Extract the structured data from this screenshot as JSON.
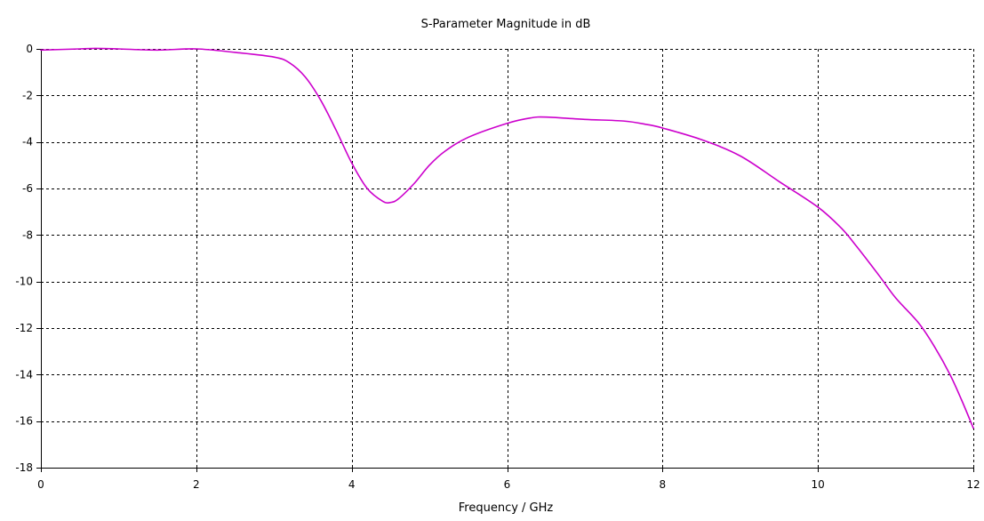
{
  "chart_data": {
    "type": "line",
    "title": "S-Parameter Magnitude in dB",
    "xlabel": "Frequency / GHz",
    "ylabel": "",
    "xlim": [
      0,
      12
    ],
    "ylim": [
      -18,
      0
    ],
    "xticks": [
      0,
      2,
      4,
      6,
      8,
      10,
      12
    ],
    "yticks": [
      0,
      -2,
      -4,
      -6,
      -8,
      -10,
      -12,
      -14,
      -16,
      -18
    ],
    "grid": true,
    "grid_style": "dashed",
    "legend": "none",
    "series": [
      {
        "color": "#cc00cc",
        "x": [
          0,
          0.5,
          0.7,
          1.0,
          1.5,
          2.0,
          2.5,
          3.0,
          3.2,
          3.4,
          3.6,
          3.8,
          4.0,
          4.2,
          4.4,
          4.5,
          4.6,
          4.8,
          5.0,
          5.2,
          5.5,
          6.0,
          6.3,
          6.5,
          7.0,
          7.5,
          7.8,
          8.0,
          8.5,
          9.0,
          9.5,
          10.0,
          10.3,
          10.5,
          10.8,
          11.0,
          11.3,
          11.5,
          11.7,
          11.85,
          12.0
        ],
        "y": [
          -0.05,
          0.0,
          0.02,
          0.0,
          -0.05,
          0.0,
          -0.15,
          -0.35,
          -0.6,
          -1.2,
          -2.2,
          -3.5,
          -4.9,
          -6.0,
          -6.55,
          -6.6,
          -6.45,
          -5.8,
          -5.0,
          -4.4,
          -3.8,
          -3.2,
          -2.97,
          -2.93,
          -3.03,
          -3.1,
          -3.25,
          -3.4,
          -3.9,
          -4.6,
          -5.7,
          -6.8,
          -7.7,
          -8.5,
          -9.8,
          -10.7,
          -11.8,
          -12.8,
          -14.0,
          -15.1,
          -16.3
        ]
      }
    ]
  }
}
